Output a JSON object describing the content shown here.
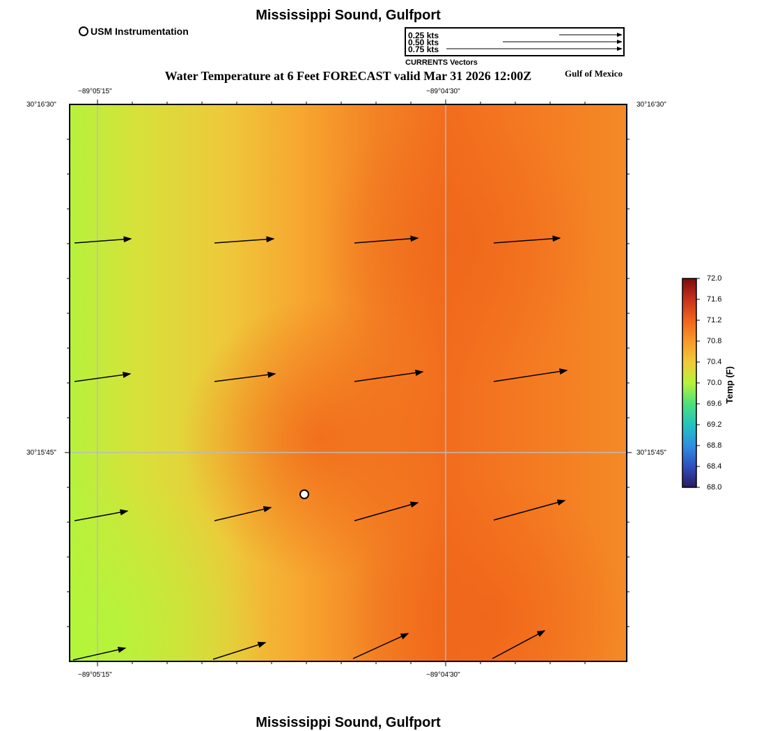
{
  "header": {
    "title": "Mississippi Sound, Gulfport"
  },
  "footer": {
    "title": "Mississippi Sound, Gulfport"
  },
  "legend": {
    "site_label": "USM Instrumentation",
    "vector_scale": [
      {
        "label": "0.25 kts",
        "speed_kts": 0.25
      },
      {
        "label": "0.50 kts",
        "speed_kts": 0.5
      },
      {
        "label": "0.75 kts",
        "speed_kts": 0.75
      }
    ],
    "vector_caption": "CURRENTS Vectors"
  },
  "plot": {
    "title": "Water Temperature at 6 Feet FORECAST valid Mar 31 2026 12:00Z",
    "region_label": "Gulf of Mexico",
    "x_ticks": [
      "−89°05'15\"",
      "−89°04'30\""
    ],
    "y_ticks": [
      "30°16'30\"",
      "30°15'45\""
    ]
  },
  "colorbar": {
    "title": "Temp (F)",
    "min": 68.0,
    "max": 72.0,
    "ticks": [
      "72.0",
      "71.6",
      "71.2",
      "70.8",
      "70.4",
      "70.0",
      "69.6",
      "69.2",
      "68.8",
      "68.4",
      "68.0"
    ],
    "colors": [
      "#2c1a5e",
      "#2f4fbf",
      "#2f8fe0",
      "#22c4c0",
      "#4ee07a",
      "#b8f23a",
      "#f0c93a",
      "#f79a2a",
      "#f0641d",
      "#c8321a",
      "#7a0c0c"
    ]
  },
  "colors": {
    "cool": "#b8f23a",
    "mid": "#f0c93a",
    "warm": "#f79a2a",
    "hot": "#f26d1e",
    "grid": "#bbbbbb"
  }
}
